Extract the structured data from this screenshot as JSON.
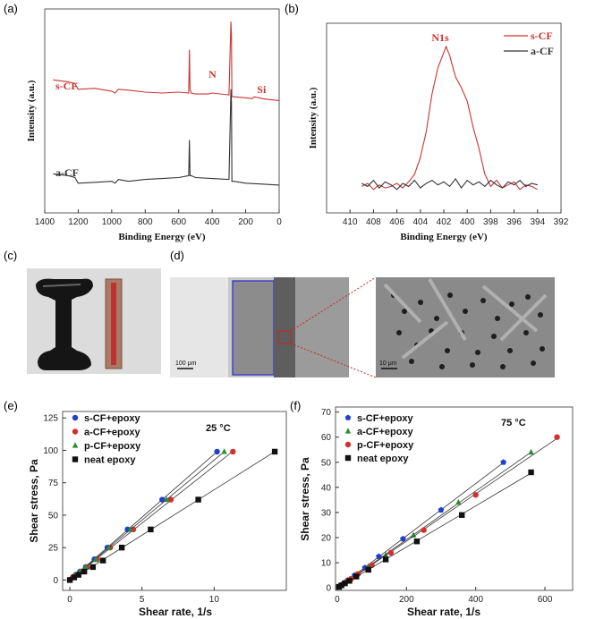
{
  "panel_labels": {
    "a": "(a)",
    "b": "(b)",
    "c": "(c)",
    "d": "(d)",
    "e": "(e)",
    "f": "(f)"
  },
  "colors": {
    "s_CF": "#cc3333",
    "a_CF": "#333333",
    "epoxy_s": "#1f3fcc",
    "epoxy_a": "#d23030",
    "epoxy_p": "#2e8b2e",
    "epoxy_neat": "#111111",
    "sem_box": "#3b3bcc",
    "zoom": "#cc2222"
  },
  "photos": {
    "scale_left": "100 μm",
    "scale_right": "10 μm"
  },
  "chart_data": [
    {
      "id": "a",
      "type": "line",
      "xlabel": "Binding Energy (eV)",
      "ylabel": "Intensity (a.u.)",
      "xlim": [
        1400,
        0
      ],
      "x_reversed": true,
      "xticks": [
        1400,
        1200,
        1000,
        800,
        600,
        400,
        200,
        0
      ],
      "series": [
        {
          "name": "s-CF",
          "color": "#cc3333",
          "x": [
            1350,
            1260,
            1220,
            1200,
            1100,
            1000,
            980,
            960,
            900,
            800,
            700,
            600,
            540,
            536,
            532,
            525,
            500,
            420,
            400,
            300,
            288,
            285,
            282,
            270,
            200,
            160,
            150,
            120,
            100,
            50,
            0
          ],
          "y": [
            0.67,
            0.66,
            0.65,
            0.62,
            0.625,
            0.61,
            0.6,
            0.62,
            0.615,
            0.605,
            0.6,
            0.605,
            0.6,
            0.83,
            0.62,
            0.6,
            0.595,
            0.595,
            0.6,
            0.59,
            0.98,
            0.9,
            0.58,
            0.58,
            0.575,
            0.57,
            0.58,
            0.575,
            0.57,
            0.565,
            0.56
          ]
        },
        {
          "name": "a-CF",
          "color": "#333333",
          "x": [
            1350,
            1260,
            1220,
            1200,
            1100,
            1000,
            980,
            960,
            900,
            800,
            700,
            600,
            540,
            536,
            532,
            525,
            500,
            400,
            300,
            288,
            285,
            282,
            270,
            200,
            100,
            0
          ],
          "y": [
            0.17,
            0.16,
            0.15,
            0.12,
            0.125,
            0.13,
            0.12,
            0.14,
            0.13,
            0.14,
            0.145,
            0.15,
            0.16,
            0.35,
            0.16,
            0.16,
            0.15,
            0.145,
            0.14,
            0.62,
            0.55,
            0.13,
            0.13,
            0.12,
            0.115,
            0.11
          ]
        }
      ],
      "annotations": [
        {
          "text": "N",
          "x": 400,
          "y": 0.68
        },
        {
          "text": "Si",
          "x": 100,
          "y": 0.6
        }
      ]
    },
    {
      "id": "b",
      "type": "line",
      "title": "N1s",
      "xlabel": "Binding Energy (eV)",
      "ylabel": "Intensity (a.u.)",
      "xlim": [
        412,
        392
      ],
      "x_reversed": true,
      "xticks": [
        410,
        408,
        406,
        404,
        402,
        400,
        398,
        396,
        394,
        392
      ],
      "legend": "top-right",
      "series": [
        {
          "name": "s-CF",
          "color": "#cc3333",
          "x": [
            409,
            408.5,
            408,
            407.5,
            407,
            406.5,
            406,
            405.5,
            405,
            404.5,
            404,
            403.5,
            403,
            402.5,
            402,
            401.8,
            401.5,
            401,
            400.5,
            400,
            399.5,
            399,
            398.5,
            398,
            397.5,
            397,
            396.5,
            396,
            395.5,
            395,
            394.5,
            394
          ],
          "y": [
            0.08,
            0.1,
            0.06,
            0.09,
            0.07,
            0.08,
            0.1,
            0.07,
            0.11,
            0.16,
            0.27,
            0.44,
            0.69,
            0.86,
            0.96,
            1.0,
            0.94,
            0.8,
            0.73,
            0.64,
            0.47,
            0.33,
            0.16,
            0.08,
            0.12,
            0.07,
            0.09,
            0.11,
            0.06,
            0.09,
            0.08,
            0.06
          ]
        },
        {
          "name": "a-CF",
          "color": "#333333",
          "x": [
            409,
            408.5,
            408,
            407.5,
            407,
            406.5,
            406,
            405.5,
            405,
            404.5,
            404,
            403.5,
            403,
            402.5,
            402,
            401.5,
            401,
            400.5,
            400,
            399.5,
            399,
            398.5,
            398,
            397.5,
            397,
            396.5,
            396,
            395.5,
            395,
            394.5,
            394
          ],
          "y": [
            0.1,
            0.08,
            0.12,
            0.07,
            0.11,
            0.09,
            0.06,
            0.1,
            0.08,
            0.12,
            0.07,
            0.1,
            0.12,
            0.09,
            0.11,
            0.08,
            0.13,
            0.07,
            0.12,
            0.09,
            0.11,
            0.08,
            0.12,
            0.09,
            0.07,
            0.11,
            0.09,
            0.12,
            0.08,
            0.1,
            0.09
          ]
        }
      ]
    },
    {
      "id": "e",
      "type": "scatter",
      "annotation": "25 °C",
      "xlabel": "Shear rate, 1/s",
      "ylabel": "Shear stress, Pa",
      "xlim": [
        -0.5,
        15
      ],
      "ylim": [
        -8,
        130
      ],
      "xticks": [
        0,
        5,
        10
      ],
      "yticks": [
        0,
        25,
        50,
        75,
        100,
        125
      ],
      "legend": "top-left",
      "series": [
        {
          "name": "s-CF+epoxy",
          "marker": "circle",
          "color": "#1f3fcc",
          "x": [
            0,
            0.2,
            0.4,
            0.7,
            1.1,
            1.7,
            2.6,
            4.0,
            6.4,
            10.2
          ],
          "y": [
            0,
            2,
            4,
            6.5,
            10,
            16,
            25,
            39,
            62,
            99
          ]
        },
        {
          "name": "a-CF+epoxy",
          "marker": "circle",
          "color": "#d23030",
          "x": [
            0,
            0.2,
            0.4,
            0.8,
            1.2,
            1.9,
            2.8,
            4.4,
            7.0,
            11.3
          ],
          "y": [
            0,
            2,
            3.7,
            6.5,
            10,
            16,
            25,
            39,
            62,
            99
          ]
        },
        {
          "name": "p-CF+epoxy",
          "marker": "triangle",
          "color": "#2e8b2e",
          "x": [
            0,
            0.2,
            0.4,
            0.7,
            1.1,
            1.8,
            2.7,
            4.2,
            6.7,
            10.7
          ],
          "y": [
            0,
            2,
            3.8,
            6.5,
            10,
            16,
            25,
            39,
            62,
            99
          ]
        },
        {
          "name": "neat epoxy",
          "marker": "square",
          "color": "#111111",
          "x": [
            0,
            0.3,
            0.6,
            1.0,
            1.6,
            2.3,
            3.6,
            5.6,
            8.9,
            14.2
          ],
          "y": [
            0,
            2,
            4,
            6.5,
            10,
            15,
            25,
            39,
            62,
            99
          ]
        }
      ]
    },
    {
      "id": "f",
      "type": "scatter",
      "annotation": "75 °C",
      "xlabel": "Shear rate, 1/s",
      "ylabel": "Shear stress, Pa",
      "xlim": [
        -5,
        680
      ],
      "ylim": [
        -1,
        72
      ],
      "xticks": [
        0,
        200,
        400,
        600
      ],
      "yticks": [
        0,
        10,
        20,
        30,
        40,
        50,
        60,
        70
      ],
      "legend": "top-left",
      "series": [
        {
          "name": "s-CF+epoxy",
          "marker": "pentagon",
          "color": "#1f3fcc",
          "x": [
            5,
            10,
            20,
            30,
            50,
            80,
            120,
            190,
            300,
            480
          ],
          "y": [
            0.5,
            1,
            2,
            3,
            5,
            8,
            12.5,
            19.5,
            31,
            50
          ]
        },
        {
          "name": "a-CF+epoxy",
          "marker": "triangle",
          "color": "#2e8b2e",
          "x": [
            5,
            12,
            22,
            35,
            55,
            90,
            140,
            220,
            350,
            560
          ],
          "y": [
            0.5,
            1,
            2,
            3.3,
            5.3,
            8.5,
            13,
            21,
            34,
            54
          ]
        },
        {
          "name": "p-CF+epoxy",
          "marker": "circle",
          "color": "#d23030",
          "x": [
            5,
            12,
            25,
            40,
            60,
            100,
            155,
            250,
            400,
            635
          ],
          "y": [
            0.5,
            1.1,
            2.3,
            3.6,
            5.5,
            9,
            14,
            23,
            37,
            60
          ]
        },
        {
          "name": "neat epoxy",
          "marker": "square",
          "color": "#111111",
          "x": [
            5,
            12,
            22,
            35,
            55,
            90,
            140,
            230,
            360,
            560
          ],
          "y": [
            0.4,
            1,
            1.8,
            2.8,
            4.5,
            7.2,
            11.3,
            18.5,
            29,
            46
          ]
        }
      ]
    }
  ]
}
